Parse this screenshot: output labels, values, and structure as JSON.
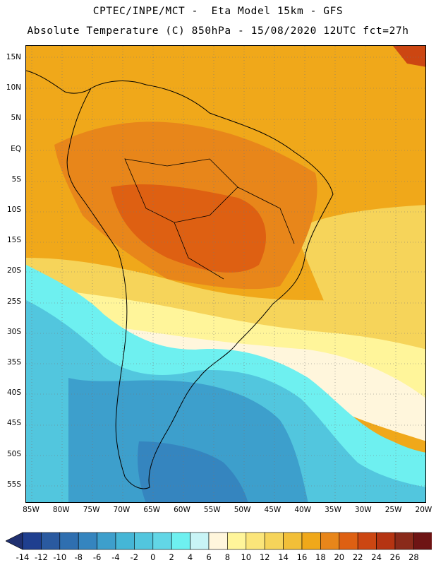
{
  "header": {
    "title_line1": "CPTEC/INPE/MCT -  Eta Model 15km - GFS",
    "title_line2": "Absolute Temperature (C) 850hPa - 15/08/2020 12UTC fct=27h"
  },
  "axes": {
    "lat_labels": [
      "15N",
      "10N",
      "5N",
      "EQ",
      "5S",
      "10S",
      "15S",
      "20S",
      "25S",
      "30S",
      "35S",
      "40S",
      "45S",
      "50S",
      "55S"
    ],
    "lon_labels": [
      "85W",
      "80W",
      "75W",
      "70W",
      "65W",
      "60W",
      "55W",
      "50W",
      "45W",
      "40W",
      "35W",
      "30W",
      "25W",
      "20W"
    ]
  },
  "legend": {
    "ticks": [
      "-14",
      "-12",
      "-10",
      "-8",
      "-6",
      "-4",
      "-2",
      "0",
      "2",
      "4",
      "6",
      "8",
      "10",
      "12",
      "14",
      "16",
      "18",
      "20",
      "22",
      "24",
      "26",
      "28"
    ],
    "colors": [
      "#1f3f8f",
      "#2a5aa0",
      "#2f6fb0",
      "#3585bf",
      "#3d9fcc",
      "#45b6d6",
      "#52c6de",
      "#62d6e6",
      "#6ef0f0",
      "#c8f4f6",
      "#fff6dc",
      "#fff59a",
      "#fbe57a",
      "#f6d45a",
      "#f2bf38",
      "#f0a81a",
      "#e8861a",
      "#de6012",
      "#cc4612",
      "#b53412",
      "#8a2a1a",
      "#6e1414"
    ],
    "under_color": "#203070",
    "over_color": "#7a0a2a"
  },
  "field_colors": {
    "ocean_warm": "#f0a81a",
    "land_hot": "#de6012",
    "land_warm": "#e8861a",
    "subtrop": "#f6d45a",
    "mild": "#fff59a",
    "cool": "#fff6dc",
    "cold1": "#6ef0f0",
    "cold2": "#52c6de",
    "cold3": "#3d9fcc",
    "cold4": "#3585bf",
    "coast": "#000000"
  }
}
